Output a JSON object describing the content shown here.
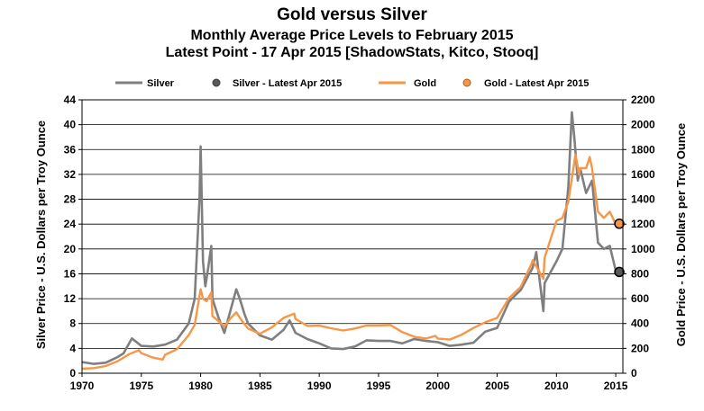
{
  "titles": {
    "title": "Gold versus Silver",
    "subtitle": "Monthly Average Price Levels to February 2015",
    "note": "Latest Point - 17 Apr 2015 [ShadowStats, Kitco, Stooq]"
  },
  "legend": {
    "silver": "Silver",
    "silver_latest": "Silver - Latest Apr 2015",
    "gold": "Gold",
    "gold_latest": "Gold - Latest Apr 2015"
  },
  "chart_data": {
    "type": "line",
    "title": "Gold versus Silver",
    "subtitle": "Monthly Average Price Levels to February 2015",
    "xlabel": "",
    "ylabel_left": "Silver Price - U.S. Dollars per Troy Ounce",
    "ylabel_right": "Gold Price - U.S. Dollars per Troy Ounce",
    "xlim": [
      1970,
      2015.6
    ],
    "ylim_left": [
      0,
      44
    ],
    "ylim_right": [
      0,
      2200
    ],
    "x_ticks": [
      "1970",
      "1975",
      "1980",
      "1985",
      "1990",
      "1995",
      "2000",
      "2005",
      "2010",
      "2015"
    ],
    "y_ticks_left": [
      "0",
      "4",
      "8",
      "12",
      "16",
      "20",
      "24",
      "28",
      "32",
      "36",
      "40",
      "44"
    ],
    "y_ticks_right": [
      "0",
      "200",
      "400",
      "600",
      "800",
      "1000",
      "1200",
      "1400",
      "1600",
      "1800",
      "2000",
      "2200"
    ],
    "grid": true,
    "legend_position": "top",
    "colors": {
      "silver": "#7f7f7f",
      "gold": "#f79646",
      "silver_marker": "#595959",
      "gold_marker": "#f79646"
    },
    "series": [
      {
        "name": "Silver",
        "axis": "left",
        "x": [
          1970,
          1971,
          1972,
          1973,
          1973.5,
          1974,
          1974.2,
          1975,
          1976,
          1977,
          1978,
          1979,
          1979.5,
          1979.9,
          1980.0,
          1980.2,
          1980.4,
          1980.6,
          1980.9,
          1981,
          1981.5,
          1982,
          1982.5,
          1983.0,
          1983.3,
          1983.7,
          1984,
          1985,
          1986,
          1987,
          1987.5,
          1988,
          1989,
          1990,
          1991,
          1992,
          1993,
          1994,
          1995,
          1996,
          1997,
          1998,
          1999,
          2000,
          2001,
          2002,
          2003,
          2004,
          2005,
          2006,
          2006.5,
          2007,
          2008,
          2008.3,
          2008.9,
          2009,
          2010,
          2010.5,
          2011.0,
          2011.3,
          2011.5,
          2011.8,
          2012,
          2012.5,
          2013,
          2013.5,
          2014,
          2014.5,
          2015
        ],
        "y": [
          1.8,
          1.5,
          1.7,
          2.6,
          3.2,
          4.9,
          5.6,
          4.4,
          4.3,
          4.6,
          5.4,
          8.0,
          12.0,
          28.0,
          36.5,
          18.0,
          14.0,
          16.5,
          20.5,
          12.0,
          9.0,
          6.5,
          10.0,
          13.5,
          12.0,
          9.5,
          8.0,
          6.1,
          5.4,
          7.0,
          8.5,
          6.5,
          5.5,
          4.8,
          4.0,
          3.9,
          4.3,
          5.3,
          5.2,
          5.2,
          4.8,
          5.5,
          5.2,
          5.0,
          4.4,
          4.6,
          4.9,
          6.7,
          7.3,
          11.5,
          12.5,
          13.4,
          17.0,
          19.5,
          10.0,
          14.5,
          18.0,
          20.0,
          30.0,
          42.0,
          38.0,
          31.0,
          33.0,
          29.0,
          31.0,
          21.0,
          20.0,
          20.5,
          16.5
        ]
      },
      {
        "name": "Gold",
        "axis": "right",
        "x": [
          1970,
          1971,
          1972,
          1973,
          1974,
          1974.8,
          1975,
          1976,
          1976.8,
          1977,
          1978,
          1979,
          1979.5,
          1980.0,
          1980.2,
          1980.5,
          1980.9,
          1981,
          1981.5,
          1982,
          1982.5,
          1983.0,
          1983.5,
          1984,
          1985,
          1986,
          1987,
          1987.9,
          1988,
          1989,
          1990,
          1991,
          1992,
          1993,
          1994,
          1995,
          1996,
          1997,
          1998,
          1999,
          1999.8,
          2000,
          2001,
          2002,
          2003,
          2004,
          2005,
          2006,
          2007,
          2007.9,
          2008,
          2008.9,
          2009,
          2010,
          2010.5,
          2011.0,
          2011.6,
          2011.9,
          2012,
          2012.5,
          2012.8,
          2013.0,
          2013.5,
          2014,
          2014.5,
          2015
        ],
        "y": [
          36,
          41,
          58,
          97,
          154,
          185,
          161,
          125,
          110,
          148,
          193,
          307,
          390,
          675,
          600,
          580,
          650,
          460,
          420,
          375,
          440,
          490,
          420,
          360,
          318,
          368,
          446,
          480,
          437,
          381,
          383,
          362,
          344,
          360,
          384,
          384,
          388,
          331,
          294,
          279,
          300,
          279,
          271,
          310,
          364,
          410,
          445,
          604,
          696,
          880,
          910,
          760,
          930,
          1225,
          1250,
          1380,
          1760,
          1600,
          1650,
          1650,
          1740,
          1650,
          1300,
          1250,
          1300,
          1200
        ]
      }
    ],
    "latest_points": [
      {
        "name": "Silver - Latest Apr 2015",
        "axis": "left",
        "x": 2015.3,
        "y": 16.3
      },
      {
        "name": "Gold - Latest Apr 2015",
        "axis": "right",
        "x": 2015.3,
        "y": 1203
      }
    ]
  }
}
